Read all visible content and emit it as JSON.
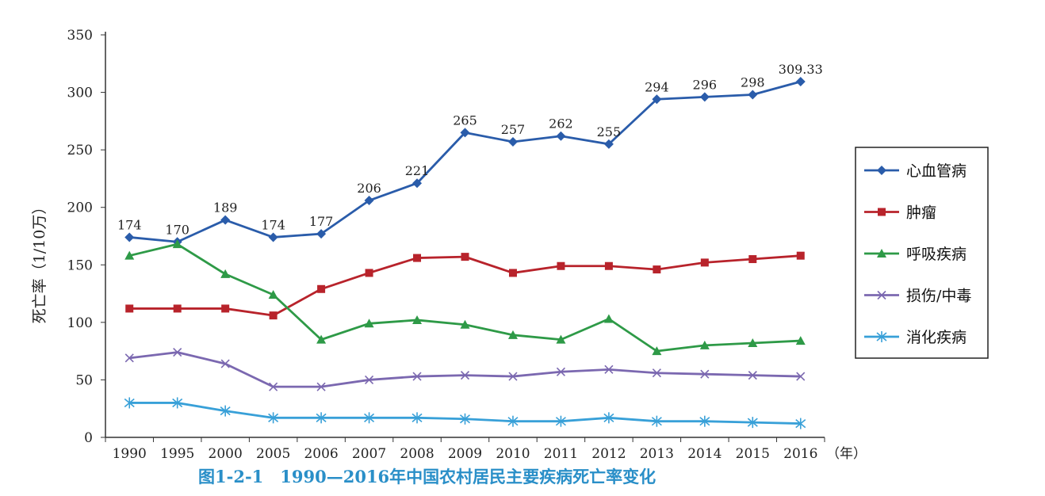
{
  "chart_data": {
    "type": "line",
    "title": "",
    "caption": "图1-2-1　1990—2016年中国农村居民主要疾病死亡率变化",
    "ylabel": "死亡率（1/10万）",
    "xunit": "（年）",
    "ylim": [
      0,
      350
    ],
    "yticks": [
      0,
      50,
      100,
      150,
      200,
      250,
      300,
      350
    ],
    "grid": false,
    "legend_position": "right",
    "categories": [
      "1990",
      "1995",
      "2000",
      "2005",
      "2006",
      "2007",
      "2008",
      "2009",
      "2010",
      "2011",
      "2012",
      "2013",
      "2014",
      "2015",
      "2016"
    ],
    "series": [
      {
        "name": "心血管病",
        "color": "#2a5caa",
        "marker": "diamond",
        "values": [
          174,
          170,
          189,
          174,
          177,
          206,
          221,
          265,
          257,
          262,
          255,
          294,
          296,
          298,
          309.33
        ],
        "labels": [
          "174",
          "170",
          "189",
          "174",
          "177",
          "206",
          "221",
          "265",
          "257",
          "262",
          "255",
          "294",
          "296",
          "298",
          "309.33"
        ]
      },
      {
        "name": "肿瘤",
        "color": "#b8232b",
        "marker": "square",
        "values": [
          112,
          112,
          112,
          106,
          129,
          143,
          156,
          157,
          143,
          149,
          149,
          146,
          152,
          155,
          158
        ]
      },
      {
        "name": "呼吸疾病",
        "color": "#2e9a47",
        "marker": "triangle",
        "values": [
          158,
          168,
          142,
          124,
          85,
          99,
          102,
          98,
          89,
          85,
          103,
          75,
          80,
          82,
          84
        ]
      },
      {
        "name": "损伤/中毒",
        "color": "#7b68b0",
        "marker": "x",
        "values": [
          69,
          74,
          64,
          44,
          44,
          50,
          53,
          54,
          53,
          57,
          59,
          56,
          55,
          54,
          53
        ]
      },
      {
        "name": "消化疾病",
        "color": "#38a0d8",
        "marker": "asterisk",
        "values": [
          30,
          30,
          23,
          17,
          17,
          17,
          17,
          16,
          14,
          14,
          17,
          14,
          14,
          13,
          12
        ]
      }
    ]
  }
}
